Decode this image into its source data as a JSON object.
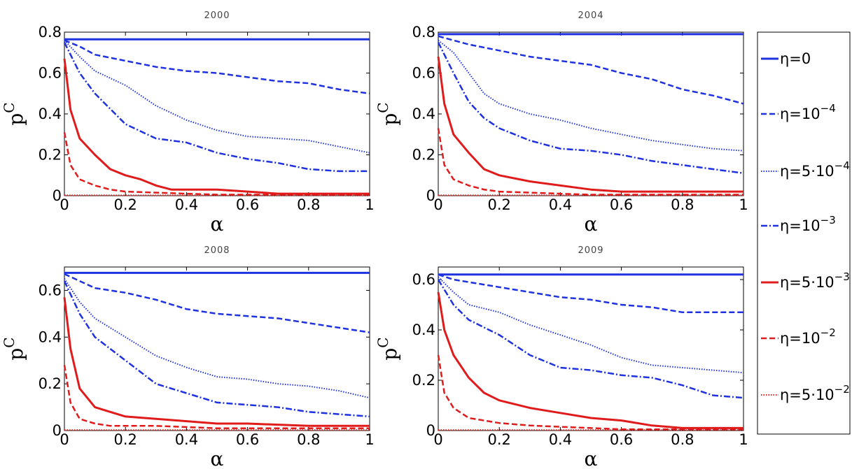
{
  "legend": [
    {
      "id": "eta0",
      "label": "η=0",
      "color": "#1f32e0",
      "dash": "",
      "width": 3
    },
    {
      "id": "eta1e-4",
      "label": "η=10",
      "sup": "−4",
      "color": "#1f32e0",
      "dash": "8,4",
      "width": 2.5
    },
    {
      "id": "eta5e-4",
      "label": "η=5·10",
      "sup": "−4",
      "color": "#1f32e0",
      "dash": "1.5,2",
      "width": 2
    },
    {
      "id": "eta1e-3",
      "label": "η=10",
      "sup": "−3",
      "color": "#1f32e0",
      "dash": "9,3,2,3",
      "width": 2.5
    },
    {
      "id": "eta5e-3",
      "label": "η=5·10",
      "sup": "−3",
      "color": "#e01b1b",
      "dash": "",
      "width": 3
    },
    {
      "id": "eta1e-2",
      "label": "η=10",
      "sup": "−2",
      "color": "#e01b1b",
      "dash": "8,4",
      "width": 2.5
    },
    {
      "id": "eta5e-2",
      "label": "η=5·10",
      "sup": "−2",
      "color": "#e01b1b",
      "dash": "1.5,2",
      "width": 2
    }
  ],
  "chart_data": [
    {
      "type": "line",
      "title": "2000",
      "xlabel": "α",
      "ylabel": "p",
      "ylabel_sup": "C",
      "xlim": [
        0,
        1
      ],
      "ylim": [
        0,
        0.8
      ],
      "xticks": [
        0,
        0.2,
        0.4,
        0.6,
        0.8,
        1
      ],
      "xtick_labels": [
        "0",
        "0.2",
        "0.4",
        "0.6",
        "0.8",
        "1"
      ],
      "yticks": [
        0,
        0.2,
        0.4,
        0.6,
        0.8
      ],
      "ytick_labels": [
        "0",
        "0.2",
        "0.4",
        "0.6",
        "0.8"
      ],
      "series": [
        {
          "legend": "eta0",
          "x": [
            0,
            1
          ],
          "y": [
            0.765,
            0.765
          ]
        },
        {
          "legend": "eta1e-4",
          "x": [
            0,
            0.05,
            0.1,
            0.2,
            0.3,
            0.4,
            0.5,
            0.6,
            0.7,
            0.8,
            0.9,
            1
          ],
          "y": [
            0.76,
            0.73,
            0.69,
            0.66,
            0.63,
            0.61,
            0.6,
            0.58,
            0.56,
            0.55,
            0.52,
            0.5
          ]
        },
        {
          "legend": "eta5e-4",
          "x": [
            0,
            0.05,
            0.1,
            0.2,
            0.3,
            0.4,
            0.5,
            0.6,
            0.7,
            0.8,
            0.9,
            1
          ],
          "y": [
            0.76,
            0.68,
            0.61,
            0.54,
            0.44,
            0.37,
            0.32,
            0.29,
            0.28,
            0.27,
            0.24,
            0.21
          ]
        },
        {
          "legend": "eta1e-3",
          "x": [
            0,
            0.05,
            0.1,
            0.2,
            0.3,
            0.4,
            0.5,
            0.6,
            0.7,
            0.8,
            0.9,
            1
          ],
          "y": [
            0.75,
            0.6,
            0.5,
            0.35,
            0.28,
            0.26,
            0.21,
            0.18,
            0.16,
            0.13,
            0.12,
            0.12
          ]
        },
        {
          "legend": "eta5e-3",
          "x": [
            0,
            0.02,
            0.05,
            0.1,
            0.15,
            0.2,
            0.25,
            0.3,
            0.35,
            0.4,
            0.5,
            0.6,
            0.7,
            0.8,
            0.9,
            1
          ],
          "y": [
            0.67,
            0.42,
            0.28,
            0.2,
            0.13,
            0.1,
            0.08,
            0.05,
            0.03,
            0.03,
            0.03,
            0.02,
            0.01,
            0.01,
            0.01,
            0.01
          ]
        },
        {
          "legend": "eta1e-2",
          "x": [
            0,
            0.02,
            0.05,
            0.1,
            0.15,
            0.2,
            0.3,
            0.4,
            0.5,
            0.6,
            0.8,
            1
          ],
          "y": [
            0.31,
            0.15,
            0.08,
            0.05,
            0.03,
            0.02,
            0.015,
            0.01,
            0.005,
            0.005,
            0.005,
            0.005
          ]
        },
        {
          "legend": "eta5e-2",
          "x": [
            0,
            1
          ],
          "y": [
            0.002,
            0.002
          ]
        }
      ]
    },
    {
      "type": "line",
      "title": "2004",
      "xlabel": "α",
      "ylabel": "p",
      "ylabel_sup": "C",
      "xlim": [
        0,
        1
      ],
      "ylim": [
        0,
        0.8
      ],
      "xticks": [
        0,
        0.2,
        0.4,
        0.6,
        0.8,
        1
      ],
      "xtick_labels": [
        "0",
        "0.2",
        "0.4",
        "0.6",
        "0.8",
        "1"
      ],
      "yticks": [
        0,
        0.2,
        0.4,
        0.6,
        0.8
      ],
      "ytick_labels": [
        "0",
        "0.2",
        "0.4",
        "0.6",
        "0.8"
      ],
      "series": [
        {
          "legend": "eta0",
          "x": [
            0,
            1
          ],
          "y": [
            0.79,
            0.79
          ]
        },
        {
          "legend": "eta1e-4",
          "x": [
            0,
            0.05,
            0.1,
            0.2,
            0.3,
            0.4,
            0.5,
            0.6,
            0.7,
            0.8,
            0.9,
            1
          ],
          "y": [
            0.78,
            0.76,
            0.74,
            0.71,
            0.68,
            0.66,
            0.64,
            0.6,
            0.57,
            0.52,
            0.49,
            0.45
          ]
        },
        {
          "legend": "eta5e-4",
          "x": [
            0,
            0.05,
            0.1,
            0.15,
            0.2,
            0.3,
            0.4,
            0.5,
            0.6,
            0.7,
            0.8,
            0.9,
            1
          ],
          "y": [
            0.76,
            0.7,
            0.6,
            0.5,
            0.45,
            0.4,
            0.37,
            0.33,
            0.3,
            0.27,
            0.25,
            0.23,
            0.22
          ]
        },
        {
          "legend": "eta1e-3",
          "x": [
            0,
            0.05,
            0.1,
            0.15,
            0.2,
            0.3,
            0.4,
            0.5,
            0.6,
            0.7,
            0.8,
            0.9,
            1
          ],
          "y": [
            0.75,
            0.6,
            0.46,
            0.38,
            0.33,
            0.27,
            0.23,
            0.22,
            0.2,
            0.17,
            0.15,
            0.13,
            0.11
          ]
        },
        {
          "legend": "eta5e-3",
          "x": [
            0,
            0.02,
            0.05,
            0.1,
            0.15,
            0.2,
            0.3,
            0.4,
            0.5,
            0.6,
            0.8,
            1
          ],
          "y": [
            0.68,
            0.45,
            0.3,
            0.21,
            0.13,
            0.1,
            0.07,
            0.05,
            0.03,
            0.02,
            0.02,
            0.02
          ]
        },
        {
          "legend": "eta1e-2",
          "x": [
            0,
            0.02,
            0.05,
            0.1,
            0.15,
            0.2,
            0.3,
            0.4,
            0.5,
            0.6,
            0.8,
            1
          ],
          "y": [
            0.33,
            0.15,
            0.08,
            0.05,
            0.03,
            0.02,
            0.015,
            0.01,
            0.005,
            0.005,
            0.005,
            0.005
          ]
        },
        {
          "legend": "eta5e-2",
          "x": [
            0,
            1
          ],
          "y": [
            0.002,
            0.002
          ]
        }
      ]
    },
    {
      "type": "line",
      "title": "2008",
      "xlabel": "α",
      "ylabel": "p",
      "ylabel_sup": "C",
      "xlim": [
        0,
        1
      ],
      "ylim": [
        0,
        0.7
      ],
      "xticks": [
        0,
        0.2,
        0.4,
        0.6,
        0.8,
        1
      ],
      "xtick_labels": [
        "0",
        "0.2",
        "0.4",
        "0.6",
        "0.8",
        "1"
      ],
      "yticks": [
        0,
        0.2,
        0.4,
        0.6
      ],
      "ytick_labels": [
        "0",
        "0.2",
        "0.4",
        "0.6"
      ],
      "series": [
        {
          "legend": "eta0",
          "x": [
            0,
            1
          ],
          "y": [
            0.675,
            0.675
          ]
        },
        {
          "legend": "eta1e-4",
          "x": [
            0,
            0.05,
            0.1,
            0.2,
            0.3,
            0.4,
            0.5,
            0.6,
            0.7,
            0.8,
            0.9,
            1
          ],
          "y": [
            0.67,
            0.64,
            0.61,
            0.59,
            0.56,
            0.52,
            0.5,
            0.49,
            0.48,
            0.46,
            0.44,
            0.42
          ]
        },
        {
          "legend": "eta5e-4",
          "x": [
            0,
            0.05,
            0.1,
            0.2,
            0.3,
            0.4,
            0.5,
            0.6,
            0.7,
            0.8,
            0.9,
            1
          ],
          "y": [
            0.65,
            0.55,
            0.48,
            0.4,
            0.32,
            0.27,
            0.23,
            0.22,
            0.2,
            0.19,
            0.17,
            0.14
          ]
        },
        {
          "legend": "eta1e-3",
          "x": [
            0,
            0.05,
            0.1,
            0.2,
            0.3,
            0.4,
            0.5,
            0.6,
            0.7,
            0.8,
            0.9,
            1
          ],
          "y": [
            0.64,
            0.5,
            0.4,
            0.3,
            0.2,
            0.16,
            0.12,
            0.11,
            0.1,
            0.08,
            0.07,
            0.06
          ]
        },
        {
          "legend": "eta5e-3",
          "x": [
            0,
            0.02,
            0.05,
            0.1,
            0.15,
            0.2,
            0.3,
            0.4,
            0.5,
            0.6,
            0.8,
            1
          ],
          "y": [
            0.57,
            0.35,
            0.18,
            0.1,
            0.08,
            0.06,
            0.05,
            0.04,
            0.03,
            0.03,
            0.02,
            0.02
          ]
        },
        {
          "legend": "eta1e-2",
          "x": [
            0,
            0.02,
            0.05,
            0.1,
            0.15,
            0.2,
            0.3,
            0.4,
            0.5,
            0.6,
            0.8,
            1
          ],
          "y": [
            0.28,
            0.12,
            0.05,
            0.03,
            0.02,
            0.02,
            0.02,
            0.015,
            0.01,
            0.01,
            0.01,
            0.01
          ]
        },
        {
          "legend": "eta5e-2",
          "x": [
            0,
            1
          ],
          "y": [
            0.002,
            0.002
          ]
        }
      ]
    },
    {
      "type": "line",
      "title": "2009",
      "xlabel": "α",
      "ylabel": "p",
      "ylabel_sup": "C",
      "xlim": [
        0,
        1
      ],
      "ylim": [
        0,
        0.65
      ],
      "xticks": [
        0,
        0.2,
        0.4,
        0.6,
        0.8,
        1
      ],
      "xtick_labels": [
        "0",
        "0.2",
        "0.4",
        "0.6",
        "0.8",
        "1"
      ],
      "yticks": [
        0,
        0.2,
        0.4,
        0.6
      ],
      "ytick_labels": [
        "0",
        "0.2",
        "0.4",
        "0.6"
      ],
      "series": [
        {
          "legend": "eta0",
          "x": [
            0,
            1
          ],
          "y": [
            0.62,
            0.62
          ]
        },
        {
          "legend": "eta1e-4",
          "x": [
            0,
            0.05,
            0.1,
            0.2,
            0.3,
            0.4,
            0.5,
            0.6,
            0.7,
            0.8,
            0.9,
            1
          ],
          "y": [
            0.62,
            0.6,
            0.59,
            0.57,
            0.55,
            0.53,
            0.52,
            0.5,
            0.49,
            0.47,
            0.47,
            0.47
          ]
        },
        {
          "legend": "eta5e-4",
          "x": [
            0,
            0.05,
            0.1,
            0.2,
            0.3,
            0.4,
            0.5,
            0.6,
            0.7,
            0.8,
            0.9,
            1
          ],
          "y": [
            0.61,
            0.55,
            0.5,
            0.47,
            0.42,
            0.38,
            0.34,
            0.29,
            0.26,
            0.25,
            0.24,
            0.23
          ]
        },
        {
          "legend": "eta1e-3",
          "x": [
            0,
            0.05,
            0.1,
            0.2,
            0.3,
            0.4,
            0.5,
            0.6,
            0.7,
            0.8,
            0.9,
            1
          ],
          "y": [
            0.6,
            0.5,
            0.44,
            0.38,
            0.3,
            0.25,
            0.24,
            0.22,
            0.21,
            0.18,
            0.14,
            0.13
          ]
        },
        {
          "legend": "eta5e-3",
          "x": [
            0,
            0.02,
            0.05,
            0.1,
            0.15,
            0.2,
            0.3,
            0.4,
            0.5,
            0.6,
            0.7,
            0.8,
            1
          ],
          "y": [
            0.55,
            0.4,
            0.3,
            0.21,
            0.15,
            0.12,
            0.09,
            0.07,
            0.05,
            0.04,
            0.02,
            0.01,
            0.01
          ]
        },
        {
          "legend": "eta1e-2",
          "x": [
            0,
            0.02,
            0.05,
            0.1,
            0.15,
            0.2,
            0.3,
            0.4,
            0.5,
            0.6,
            0.8,
            1
          ],
          "y": [
            0.3,
            0.15,
            0.09,
            0.05,
            0.04,
            0.03,
            0.02,
            0.015,
            0.01,
            0.005,
            0.005,
            0.005
          ]
        },
        {
          "legend": "eta5e-2",
          "x": [
            0,
            1
          ],
          "y": [
            0.002,
            0.002
          ]
        }
      ]
    }
  ]
}
